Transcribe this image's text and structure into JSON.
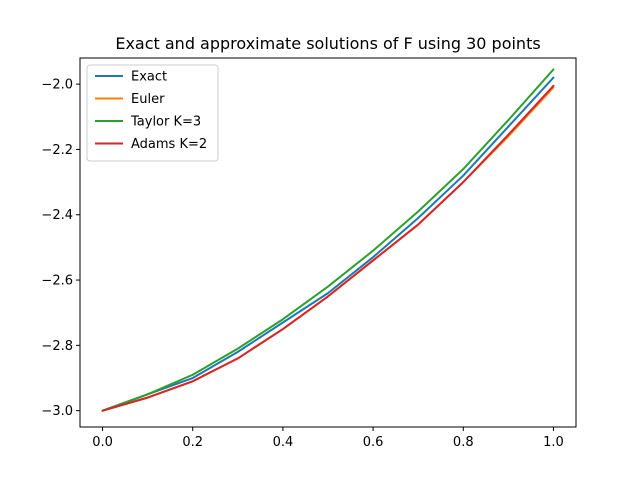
{
  "chart_data": {
    "type": "line",
    "title": "Exact and approximate solutions of F using 30 points",
    "xlabel": "",
    "ylabel": "",
    "xlim": [
      -0.05,
      1.05
    ],
    "ylim": [
      -3.05,
      -1.92
    ],
    "x_ticks": [
      0.0,
      0.2,
      0.4,
      0.6,
      0.8,
      1.0
    ],
    "x_tick_labels": [
      "0.0",
      "0.2",
      "0.4",
      "0.6",
      "0.8",
      "1.0"
    ],
    "y_ticks": [
      -3.0,
      -2.8,
      -2.6,
      -2.4,
      -2.2,
      -2.0
    ],
    "y_tick_labels": [
      "−3.0",
      "−2.8",
      "−2.6",
      "−2.4",
      "−2.2",
      "−2.0"
    ],
    "grid": false,
    "legend_position": "top-left",
    "x": [
      0.0,
      0.1,
      0.2,
      0.3,
      0.4,
      0.5,
      0.6,
      0.7,
      0.8,
      0.9,
      1.0
    ],
    "series": [
      {
        "name": "Exact",
        "color": "#1f77b4",
        "values": [
          -3.0,
          -2.95,
          -2.9,
          -2.82,
          -2.73,
          -2.64,
          -2.53,
          -2.41,
          -2.28,
          -2.13,
          -1.98
        ]
      },
      {
        "name": "Euler",
        "color": "#ff7f0e",
        "values": [
          -3.0,
          -2.96,
          -2.91,
          -2.84,
          -2.75,
          -2.65,
          -2.54,
          -2.43,
          -2.3,
          -2.16,
          -2.01
        ]
      },
      {
        "name": "Taylor K=3",
        "color": "#2ca02c",
        "values": [
          -3.0,
          -2.95,
          -2.89,
          -2.81,
          -2.72,
          -2.62,
          -2.51,
          -2.39,
          -2.26,
          -2.11,
          -1.955
        ]
      },
      {
        "name": "Adams K=2",
        "color": "#d62728",
        "values": [
          -3.0,
          -2.96,
          -2.91,
          -2.84,
          -2.75,
          -2.65,
          -2.54,
          -2.43,
          -2.3,
          -2.155,
          -2.005
        ]
      }
    ]
  }
}
